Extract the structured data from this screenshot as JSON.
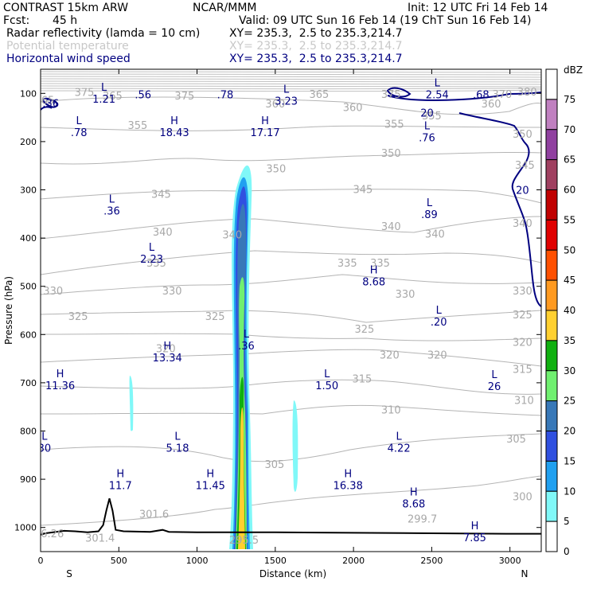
{
  "header": {
    "model": "CONTRAST 15km ARW",
    "org": "NCAR/MMM",
    "init": "Init: 12 UTC Fri 14 Feb 14",
    "fcst_label": "Fcst:",
    "fcst_value": "45 h",
    "valid": "Valid: 09 UTC Sun 16 Feb 14 (19 ChT Sun 16 Feb 14)",
    "fields": [
      {
        "name": "Radar reflectivity (lamda = 10 cm)",
        "xy": "XY= 235.3,  2.5 to 235.3,214.7"
      },
      {
        "name": "Potential temperature",
        "xy": "XY= 235.3,  2.5 to 235.3,214.7"
      },
      {
        "name": "Horizontal wind speed",
        "xy": "XY= 235.3,  2.5 to 235.3,214.7"
      }
    ]
  },
  "chart_data": {
    "type": "contour cross-section",
    "xlabel": "Distance (km)",
    "ylabel": "Pressure (hPa)",
    "xlim": [
      0,
      3200
    ],
    "ylim": [
      1050,
      50
    ],
    "x_ticks": [
      0,
      500,
      1000,
      1500,
      2000,
      2500,
      3000
    ],
    "y_ticks": [
      100,
      200,
      300,
      400,
      500,
      600,
      700,
      800,
      900,
      1000
    ],
    "x_end_labels": {
      "left": "S",
      "right": "N"
    },
    "colorbar": {
      "unit": "dBZ",
      "levels": [
        75,
        70,
        65,
        60,
        55,
        50,
        45,
        40,
        35,
        30,
        25,
        20,
        15,
        10,
        5,
        0
      ],
      "colors": [
        "#ffffff",
        "#c080c0",
        "#9040a0",
        "#a04060",
        "#c00000",
        "#e00000",
        "#ff5000",
        "#ff9a20",
        "#ffd030",
        "#10b010",
        "#70f070",
        "#3878b8",
        "#3050e0",
        "#20a0f0",
        "#80f8f8",
        "#ffffff"
      ]
    },
    "theta_contour_labels": [
      {
        "x": 25,
        "p": 115,
        "v": "365"
      },
      {
        "x": 280,
        "p": 99,
        "v": "375"
      },
      {
        "x": 460,
        "p": 106,
        "v": "365"
      },
      {
        "x": 920,
        "p": 106,
        "v": "375"
      },
      {
        "x": 1780,
        "p": 103,
        "v": "365"
      },
      {
        "x": 2240,
        "p": 103,
        "v": "375"
      },
      {
        "x": 2950,
        "p": 103,
        "v": "370"
      },
      {
        "x": 3110,
        "p": 98,
        "v": "380"
      },
      {
        "x": 1500,
        "p": 123,
        "v": "360"
      },
      {
        "x": 1995,
        "p": 130,
        "v": "360"
      },
      {
        "x": 2880,
        "p": 123,
        "v": "360"
      },
      {
        "x": 620,
        "p": 167,
        "v": "355"
      },
      {
        "x": 2260,
        "p": 165,
        "v": "355"
      },
      {
        "x": 2500,
        "p": 147,
        "v": "355"
      },
      {
        "x": 1505,
        "p": 257,
        "v": "350"
      },
      {
        "x": 2240,
        "p": 225,
        "v": "350"
      },
      {
        "x": 3080,
        "p": 185,
        "v": "350"
      },
      {
        "x": 770,
        "p": 310,
        "v": "345"
      },
      {
        "x": 2060,
        "p": 300,
        "v": "345"
      },
      {
        "x": 3095,
        "p": 250,
        "v": "345"
      },
      {
        "x": 780,
        "p": 388,
        "v": "340"
      },
      {
        "x": 1225,
        "p": 394,
        "v": "340"
      },
      {
        "x": 2240,
        "p": 377,
        "v": "340"
      },
      {
        "x": 2520,
        "p": 392,
        "v": "340"
      },
      {
        "x": 3080,
        "p": 370,
        "v": "340"
      },
      {
        "x": 740,
        "p": 453,
        "v": "335"
      },
      {
        "x": 1960,
        "p": 453,
        "v": "335"
      },
      {
        "x": 2170,
        "p": 453,
        "v": "335"
      },
      {
        "x": 80,
        "p": 510,
        "v": "330"
      },
      {
        "x": 840,
        "p": 510,
        "v": "330"
      },
      {
        "x": 2330,
        "p": 517,
        "v": "330"
      },
      {
        "x": 3080,
        "p": 510,
        "v": "330"
      },
      {
        "x": 240,
        "p": 563,
        "v": "325"
      },
      {
        "x": 1115,
        "p": 563,
        "v": "325"
      },
      {
        "x": 2070,
        "p": 590,
        "v": "325"
      },
      {
        "x": 3080,
        "p": 560,
        "v": "325"
      },
      {
        "x": 800,
        "p": 630,
        "v": "320"
      },
      {
        "x": 2230,
        "p": 643,
        "v": "320"
      },
      {
        "x": 2535,
        "p": 643,
        "v": "320"
      },
      {
        "x": 3080,
        "p": 617,
        "v": "320"
      },
      {
        "x": 3080,
        "p": 673,
        "v": "315"
      },
      {
        "x": 2055,
        "p": 693,
        "v": "315"
      },
      {
        "x": 2240,
        "p": 757,
        "v": "310"
      },
      {
        "x": 3090,
        "p": 737,
        "v": "310"
      },
      {
        "x": 3040,
        "p": 817,
        "v": "305"
      },
      {
        "x": 1495,
        "p": 870,
        "v": "305"
      },
      {
        "x": 3080,
        "p": 937,
        "v": "300"
      },
      {
        "x": 2440,
        "p": 983,
        "v": "299.7"
      },
      {
        "x": 725,
        "p": 973,
        "v": "301.6"
      },
      {
        "x": 1300,
        "p": 1027,
        "v": "295.5"
      },
      {
        "x": 380,
        "p": 1023,
        "v": "301.4"
      },
      {
        "x": 75,
        "p": 1014,
        "v": "6.26"
      }
    ],
    "wind_hl_labels": [
      {
        "x": 65,
        "p": 115,
        "t": "",
        "v": ".36"
      },
      {
        "x": 405,
        "p": 106,
        "t": "L",
        "v": "1.21"
      },
      {
        "x": 655,
        "p": 97,
        "t": "",
        "v": ".56"
      },
      {
        "x": 1180,
        "p": 97,
        "t": "",
        "v": ".78"
      },
      {
        "x": 1570,
        "p": 110,
        "t": "L",
        "v": "3.23"
      },
      {
        "x": 2535,
        "p": 97,
        "t": "L",
        "v": "2.54"
      },
      {
        "x": 2815,
        "p": 97,
        "t": "",
        "v": ".68"
      },
      {
        "x": 245,
        "p": 175,
        "t": "L",
        "v": ".78"
      },
      {
        "x": 855,
        "p": 175,
        "t": "H",
        "v": "18.43"
      },
      {
        "x": 1435,
        "p": 175,
        "t": "H",
        "v": "17.17"
      },
      {
        "x": 2470,
        "p": 186,
        "t": "L",
        "v": ".76"
      },
      {
        "x": 455,
        "p": 338,
        "t": "L",
        "v": ".36"
      },
      {
        "x": 2485,
        "p": 345,
        "t": "L",
        "v": ".89"
      },
      {
        "x": 710,
        "p": 438,
        "t": "L",
        "v": "2.23"
      },
      {
        "x": 2130,
        "p": 485,
        "t": "H",
        "v": "8.68"
      },
      {
        "x": 2545,
        "p": 568,
        "t": "L",
        "v": ".20"
      },
      {
        "x": 1315,
        "p": 618,
        "t": "L",
        "v": ".36"
      },
      {
        "x": 810,
        "p": 642,
        "t": "H",
        "v": "13.34"
      },
      {
        "x": 125,
        "p": 700,
        "t": "H",
        "v": "11.36"
      },
      {
        "x": 1830,
        "p": 700,
        "t": "L",
        "v": "1.50"
      },
      {
        "x": 2900,
        "p": 702,
        "t": "L",
        "v": "26"
      },
      {
        "x": 25,
        "p": 830,
        "t": "L",
        "v": "30"
      },
      {
        "x": 875,
        "p": 830,
        "t": "L",
        "v": "5.18"
      },
      {
        "x": 2290,
        "p": 830,
        "t": "L",
        "v": "4.22"
      },
      {
        "x": 510,
        "p": 907,
        "t": "H",
        "v": "11.7"
      },
      {
        "x": 1085,
        "p": 907,
        "t": "H",
        "v": "11.45"
      },
      {
        "x": 1965,
        "p": 907,
        "t": "H",
        "v": "16.38"
      },
      {
        "x": 2385,
        "p": 945,
        "t": "H",
        "v": "8.68"
      },
      {
        "x": 2775,
        "p": 1015,
        "t": "H",
        "v": "7.85"
      }
    ],
    "wind_contour_labels": [
      {
        "x": 2470,
        "p": 140,
        "v": "20"
      },
      {
        "x": 3080,
        "p": 300,
        "v": "20"
      }
    ],
    "terrain_pressure": [
      [
        0,
        1015
      ],
      [
        30,
        1012
      ],
      [
        80,
        1010
      ],
      [
        150,
        1007
      ],
      [
        220,
        1008
      ],
      [
        300,
        1010
      ],
      [
        370,
        1008
      ],
      [
        400,
        995
      ],
      [
        420,
        965
      ],
      [
        440,
        940
      ],
      [
        460,
        965
      ],
      [
        480,
        1005
      ],
      [
        530,
        1008
      ],
      [
        700,
        1009
      ],
      [
        780,
        1005
      ],
      [
        820,
        1009
      ],
      [
        1000,
        1010
      ],
      [
        1200,
        1010
      ],
      [
        1500,
        1010
      ],
      [
        2000,
        1011
      ],
      [
        2500,
        1012
      ],
      [
        3000,
        1013
      ],
      [
        3200,
        1013
      ]
    ]
  }
}
